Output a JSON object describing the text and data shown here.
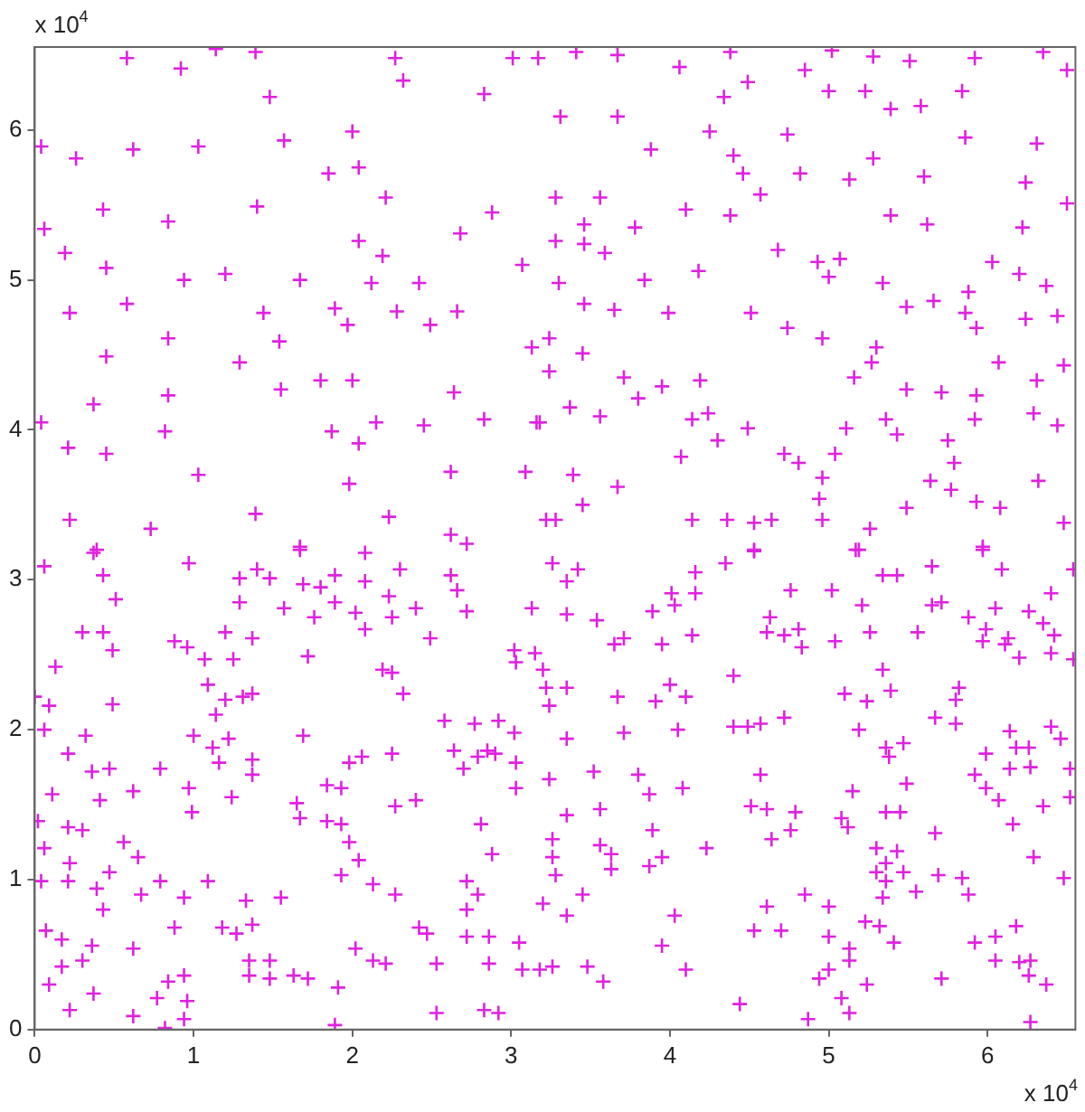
{
  "chart_data": {
    "type": "scatter",
    "marker": "cross",
    "xlim": [
      0,
      6.5536
    ],
    "ylim": [
      0,
      6.5536
    ],
    "xticks": [
      0,
      1,
      2,
      3,
      4,
      5,
      6
    ],
    "yticks": [
      0,
      1,
      2,
      3,
      4,
      5,
      6
    ],
    "annotations": [
      "x 10$^{4}$",
      "x 10$^{4}$"
    ],
    "series": [
      {
        "color": "#e020e0",
        "x": [
          0.58,
          0.92,
          1.14,
          1.39,
          0.62,
          1.03,
          1.48,
          1.57,
          0.04,
          0.26,
          0.43,
          0.84,
          1.4,
          0.06,
          0.19,
          0.45,
          0.94,
          1.67,
          0.22,
          0.58,
          1.2,
          1.44,
          0.45,
          0.84,
          1.29,
          1.54,
          0.84,
          1.55,
          0.37,
          0.04,
          0.21,
          0.45,
          0.82,
          1.03,
          0.22,
          0.73,
          1.39,
          1.67,
          0.39,
          2.0,
          2.27,
          2.04,
          1.85,
          2.32,
          2.83,
          3.01,
          3.17,
          2.21,
          2.88,
          2.68,
          2.04,
          2.19,
          2.12,
          2.42,
          3.07,
          3.28,
          1.89,
          2.28,
          2.66,
          2.49,
          1.97,
          1.8,
          2.0,
          2.15,
          2.45,
          2.64,
          2.83,
          3.13,
          3.18,
          1.87,
          2.04,
          1.98,
          2.62,
          3.09,
          2.23,
          2.62,
          3.22,
          2.72,
          3.41,
          3.67,
          4.06,
          4.38,
          5.02,
          5.28,
          5.51,
          5.92,
          6.35,
          6.5,
          3.31,
          3.67,
          4.34,
          4.49,
          4.85,
          5.0,
          5.23,
          5.39,
          5.58,
          5.84,
          5.86,
          6.31,
          3.88,
          4.25,
          4.74,
          4.4,
          4.46,
          4.82,
          5.13,
          5.28,
          5.6,
          6.24,
          3.28,
          3.56,
          4.1,
          4.38,
          4.57,
          5.39,
          5.62,
          6.22,
          6.5,
          3.78,
          3.46,
          3.46,
          3.59,
          4.68,
          4.93,
          5.07,
          6.03,
          6.2,
          3.3,
          3.84,
          4.18,
          5.0,
          5.34,
          5.49,
          5.66,
          5.88,
          6.37,
          3.46,
          3.65,
          3.99,
          4.51,
          4.74,
          4.96,
          5.3,
          5.86,
          5.93,
          6.24,
          6.44,
          3.24,
          3.45,
          5.27,
          5.16,
          6.07,
          6.48,
          3.24,
          3.71,
          3.95,
          4.19,
          3.8,
          5.49,
          5.71,
          5.93,
          6.31,
          6.29,
          6.44,
          3.16,
          3.37,
          3.56,
          4.14,
          4.24,
          4.49,
          4.07,
          4.3,
          4.72,
          4.81,
          5.04,
          5.11,
          5.36,
          5.43,
          5.75,
          5.79,
          5.92,
          3.39,
          3.67,
          3.45,
          5.64,
          5.77,
          5.93,
          6.08,
          6.32,
          4.96,
          4.94,
          4.14,
          4.36,
          4.53,
          4.64,
          4.96,
          5.26,
          5.49,
          6.48,
          3.28,
          4.53,
          5.19,
          5.97,
          0.06,
          0.37,
          0.43,
          0.51,
          0.3,
          0.43,
          0.49,
          0.13,
          0,
          0.09,
          0.49,
          0.06,
          0.32,
          0.21,
          0.36,
          0.47,
          0.11,
          0.41,
          0.02,
          0.21,
          0.3,
          0.06,
          0.22,
          0.04,
          0.21,
          0.39,
          0.47,
          0.43,
          0.07,
          0.17,
          0.17,
          0.09,
          0.22,
          0.3,
          0.36,
          0.37,
          0.62,
          0.56,
          0.65,
          0.67,
          0.79,
          0.62,
          0.62,
          0.77,
          0.82,
          0.84,
          0.94,
          0.96,
          0.94,
          0.88,
          0.94,
          0.79,
          0.88,
          0.96,
          0.97,
          0.97,
          0.99,
          1.0,
          1.07,
          1.09,
          1.09,
          1.12,
          1.14,
          1.16,
          1.18,
          1.2,
          1.2,
          1.22,
          1.24,
          1.25,
          1.27,
          1.29,
          1.29,
          1.31,
          1.33,
          1.35,
          1.35,
          1.37,
          1.37,
          1.37,
          1.37,
          1.37,
          1.4,
          1.48,
          1.48,
          1.48,
          1.55,
          1.57,
          1.63,
          1.65,
          1.67,
          1.69,
          1.69,
          1.67,
          1.72,
          1.72,
          1.76,
          1.8,
          1.84,
          1.84,
          1.89,
          1.89,
          1.91,
          1.89,
          1.93,
          1.93,
          1.93,
          1.98,
          1.98,
          2.02,
          2.02,
          2.04,
          2.06,
          2.08,
          2.08,
          2.08,
          2.13,
          2.13,
          2.21,
          2.23,
          2.25,
          2.19,
          2.25,
          2.25,
          2.27,
          2.27,
          2.3,
          2.32,
          2.4,
          2.4,
          2.42,
          2.47,
          2.49,
          2.53,
          2.53,
          2.58,
          2.62,
          2.66,
          2.72,
          2.64,
          2.7,
          2.72,
          2.79,
          2.72,
          2.72,
          2.77,
          2.79,
          2.81,
          2.85,
          2.86,
          2.86,
          2.83,
          2.92,
          2.88,
          2.9,
          2.92,
          3.02,
          3.03,
          3.02,
          3.03,
          3.03,
          3.05,
          3.07,
          3.13,
          3.15,
          3.2,
          3.22,
          3.24,
          3.24,
          3.26,
          3.26,
          3.28,
          3.2,
          3.18,
          3.26,
          3.26,
          3.35,
          3.42,
          3.35,
          3.54,
          3.35,
          3.35,
          3.35,
          3.35,
          3.45,
          3.48,
          3.58,
          3.65,
          3.71,
          3.67,
          3.71,
          3.52,
          3.56,
          3.56,
          3.63,
          3.63,
          3.8,
          3.87,
          3.89,
          3.87,
          3.95,
          3.89,
          3.95,
          3.91,
          4.0,
          4.01,
          4.03,
          4.16,
          4.16,
          4.14,
          4.1,
          4.05,
          4.08,
          4.03,
          3.95,
          4.1,
          4.23,
          4.35,
          4.4,
          4.4,
          4.49,
          4.57,
          4.53,
          4.44,
          4.51,
          4.57,
          4.61,
          4.64,
          4.61,
          4.63,
          4.61,
          4.53,
          4.7,
          4.72,
          4.72,
          4.76,
          4.81,
          4.83,
          4.79,
          4.76,
          4.85,
          4.87,
          4.94,
          5.0,
          5.0,
          5.0,
          5.02,
          5.04,
          5.08,
          5.12,
          5.1,
          5.13,
          5.13,
          5.08,
          5.13,
          5.17,
          5.15,
          5.19,
          5.21,
          5.24,
          5.23,
          5.24,
          5.26,
          5.3,
          5.3,
          5.32,
          5.34,
          5.34,
          5.36,
          5.38,
          5.36,
          5.36,
          5.34,
          5.39,
          5.43,
          5.45,
          5.36,
          5.43,
          5.47,
          5.41,
          5.49,
          5.47,
          5.55,
          5.56,
          5.65,
          5.65,
          5.71,
          5.67,
          5.67,
          5.69,
          5.71,
          5.8,
          5.8,
          5.82,
          5.84,
          5.88,
          5.88,
          5.92,
          5.92,
          5.97,
          5.97,
          5.99,
          5.99,
          5.99,
          6.05,
          6.05,
          6.05,
          6.07,
          6.09,
          6.11,
          6.13,
          6.14,
          6.14,
          6.18,
          6.16,
          6.18,
          6.2,
          6.2,
          6.26,
          6.26,
          6.27,
          6.27,
          6.27,
          6.29,
          6.26,
          6.35,
          6.35,
          6.37,
          6.4,
          6.4,
          6.42,
          6.4,
          6.46,
          6.48,
          6.52,
          6.52,
          6.54,
          6.54
        ],
        "values": [
          6.48,
          6.41,
          6.54,
          6.52,
          5.87,
          5.89,
          6.22,
          5.93,
          5.89,
          5.81,
          5.47,
          5.39,
          5.49,
          5.34,
          5.18,
          5.08,
          5.0,
          5.0,
          4.78,
          4.84,
          5.04,
          4.78,
          4.49,
          4.61,
          4.45,
          4.59,
          4.23,
          4.27,
          4.17,
          4.05,
          3.88,
          3.84,
          3.99,
          3.7,
          3.4,
          3.34,
          3.44,
          3.22,
          3.2,
          5.99,
          6.48,
          5.75,
          5.71,
          6.33,
          6.24,
          6.48,
          6.48,
          5.55,
          5.45,
          5.31,
          5.26,
          5.16,
          4.98,
          4.98,
          5.1,
          5.26,
          4.81,
          4.79,
          4.79,
          4.7,
          4.7,
          4.33,
          4.33,
          4.05,
          4.03,
          4.25,
          4.07,
          4.55,
          4.05,
          3.99,
          3.91,
          3.64,
          3.72,
          3.72,
          3.42,
          3.3,
          3.4,
          3.24,
          6.52,
          6.5,
          6.42,
          6.52,
          6.53,
          6.49,
          6.46,
          6.48,
          6.52,
          6.4,
          6.09,
          6.09,
          6.22,
          6.32,
          6.4,
          6.26,
          6.26,
          6.14,
          6.16,
          6.26,
          5.95,
          5.91,
          5.87,
          5.99,
          5.97,
          5.83,
          5.71,
          5.71,
          5.67,
          5.81,
          5.69,
          5.65,
          5.55,
          5.55,
          5.47,
          5.43,
          5.57,
          5.43,
          5.37,
          5.35,
          5.51,
          5.35,
          5.37,
          5.24,
          5.18,
          5.2,
          5.12,
          5.14,
          5.12,
          5.04,
          4.98,
          5.0,
          5.06,
          5.02,
          4.98,
          4.82,
          4.86,
          4.92,
          4.96,
          4.84,
          4.8,
          4.78,
          4.78,
          4.68,
          4.61,
          4.55,
          4.78,
          4.68,
          4.74,
          4.76,
          4.61,
          4.51,
          4.45,
          4.35,
          4.45,
          4.43,
          4.39,
          4.35,
          4.29,
          4.33,
          4.21,
          4.27,
          4.25,
          4.23,
          4.33,
          4.11,
          4.03,
          4.05,
          4.15,
          4.09,
          4.07,
          4.11,
          4.01,
          3.82,
          3.93,
          3.84,
          3.78,
          3.84,
          4.01,
          4.07,
          3.97,
          3.93,
          3.78,
          4.07,
          3.7,
          3.62,
          3.5,
          3.66,
          3.6,
          3.52,
          3.48,
          3.66,
          3.68,
          3.54,
          3.4,
          3.4,
          3.38,
          3.4,
          3.4,
          3.34,
          3.48,
          3.38,
          3.4,
          3.2,
          3.2,
          3.22,
          3.09,
          3.18,
          3.03,
          2.87,
          2.65,
          2.65,
          2.53,
          2.42,
          2.22,
          2.16,
          2.17,
          2.0,
          1.96,
          1.84,
          1.72,
          1.74,
          1.57,
          1.53,
          1.39,
          1.35,
          1.33,
          1.21,
          1.11,
          0.99,
          0.99,
          0.94,
          1.05,
          0.8,
          0.66,
          0.6,
          0.42,
          0.3,
          0.13,
          0.46,
          0.56,
          0.24,
          1.59,
          1.25,
          1.15,
          0.9,
          0.99,
          0.54,
          0.09,
          0.21,
          0.01,
          0.32,
          0.36,
          0.19,
          0.07,
          0.68,
          0.88,
          1.74,
          2.59,
          2.55,
          3.11,
          1.61,
          1.45,
          1.96,
          2.47,
          2.3,
          0.99,
          1.88,
          2.1,
          1.78,
          0.68,
          2.65,
          2.2,
          1.94,
          1.55,
          2.47,
          0.64,
          2.85,
          3.01,
          2.22,
          0.86,
          0.46,
          0.36,
          0.7,
          2.61,
          1.8,
          1.7,
          2.24,
          3.07,
          3.01,
          0.46,
          0.34,
          0.88,
          2.81,
          0.36,
          1.51,
          1.41,
          1.96,
          2.97,
          3.2,
          0.34,
          2.49,
          2.75,
          2.95,
          1.63,
          1.39,
          3.03,
          2.85,
          0.28,
          0.03,
          1.37,
          1.03,
          1.61,
          1.78,
          1.25,
          2.78,
          0.54,
          1.13,
          1.82,
          2.67,
          3.18,
          2.99,
          0.46,
          0.97,
          0.44,
          2.89,
          2.75,
          2.4,
          2.38,
          1.84,
          1.49,
          0.9,
          3.07,
          2.24,
          2.81,
          1.53,
          0.68,
          0.64,
          2.61,
          0.44,
          0.11,
          2.06,
          3.03,
          2.93,
          2.79,
          1.86,
          1.74,
          0.99,
          0.9,
          0.8,
          0.62,
          2.04,
          1.82,
          1.37,
          1.86,
          0.62,
          0.44,
          0.13,
          0.11,
          1.17,
          1.84,
          2.06,
          2.53,
          2.45,
          1.98,
          1.78,
          1.61,
          0.58,
          0.4,
          2.81,
          2.51,
          2.4,
          2.28,
          2.16,
          1.67,
          1.27,
          1.15,
          1.03,
          0.84,
          0.4,
          0.42,
          3.11,
          2.99,
          3.07,
          2.77,
          2.73,
          2.28,
          1.94,
          1.43,
          0.76,
          0.9,
          0.42,
          0.32,
          2.57,
          2.61,
          2.22,
          1.98,
          1.72,
          1.47,
          1.23,
          1.17,
          1.07,
          1.7,
          1.57,
          1.33,
          1.09,
          1.15,
          2.79,
          2.57,
          2.19,
          2.3,
          2.91,
          2.83,
          3.05,
          2.91,
          2.63,
          2.22,
          2.0,
          1.61,
          0.76,
          0.56,
          0.4,
          1.21,
          3.11,
          2.36,
          2.02,
          2.02,
          2.04,
          3.19,
          0.17,
          1.49,
          1.7,
          1.47,
          1.27,
          2.65,
          2.75,
          0.82,
          0.66,
          0.66,
          2.08,
          2.63,
          2.93,
          2.67,
          2.55,
          1.45,
          1.33,
          0.9,
          0.07,
          0.34,
          0.4,
          0.82,
          0.62,
          2.93,
          2.59,
          1.41,
          1.35,
          2.24,
          0.54,
          0.46,
          0.21,
          0.11,
          3.2,
          1.59,
          2.0,
          2.83,
          2.19,
          0.72,
          0.3,
          2.65,
          1.21,
          1.05,
          0.69,
          2.4,
          3.03,
          1.88,
          1.82,
          1.11,
          0.99,
          0.88,
          2.26,
          3.03,
          1.45,
          1.45,
          1.19,
          1.05,
          0.58,
          1.64,
          1.91,
          0.92,
          2.65,
          3.09,
          2.83,
          2.85,
          2.08,
          1.31,
          1.03,
          0.34,
          2.04,
          2.2,
          2.28,
          1.01,
          0.9,
          2.75,
          1.7,
          0.58,
          3.2,
          2.59,
          2.67,
          1.84,
          1.61,
          2.81,
          0.62,
          0.46,
          1.53,
          3.07,
          2.57,
          2.61,
          1.74,
          1.99,
          1.88,
          1.37,
          0.69,
          2.48,
          0.45,
          2.79,
          1.88,
          1.75,
          0.46,
          0.05,
          1.15,
          0.36,
          2.71,
          1.49,
          0.3,
          2.91,
          2.51,
          2.63,
          2.02,
          1.94,
          1.01,
          1.74,
          1.55,
          3.07,
          2.47
        ]
      }
    ]
  }
}
